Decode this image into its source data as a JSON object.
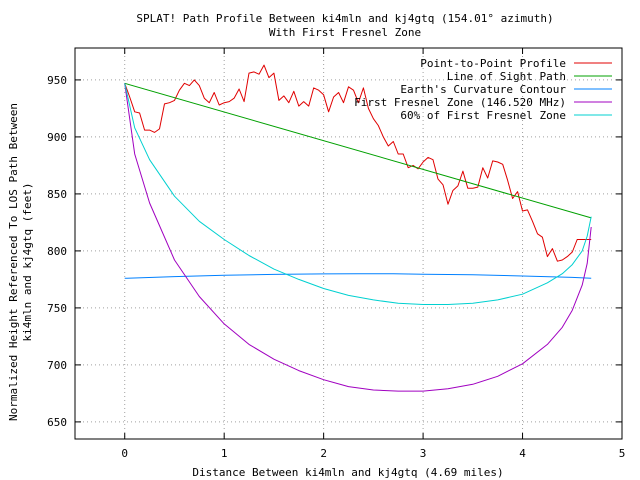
{
  "chart_data": {
    "type": "line",
    "title_line1": "SPLAT! Path Profile Between ki4mln and kj4gtq (154.01° azimuth)",
    "title_line2": "With First Fresnel Zone",
    "xlabel": "Distance Between ki4mln and kj4gtq (4.69 miles)",
    "ylabel_line1": "Normalized Height Referenced To LOS Path Between",
    "ylabel_line2": "ki4mln and kj4gtq (feet)",
    "xlim": [
      -0.5,
      5
    ],
    "ylim": [
      635,
      978
    ],
    "xticks": [
      0,
      1,
      2,
      3,
      4,
      5
    ],
    "yticks": [
      650,
      700,
      750,
      800,
      850,
      900,
      950
    ],
    "grid": true,
    "legend_position": "top-right",
    "series": [
      {
        "name": "Point-to-Point Profile",
        "color": "#e00000",
        "x": [
          0,
          0.05,
          0.1,
          0.15,
          0.2,
          0.25,
          0.3,
          0.35,
          0.4,
          0.45,
          0.5,
          0.55,
          0.6,
          0.65,
          0.7,
          0.75,
          0.8,
          0.85,
          0.9,
          0.95,
          1.0,
          1.05,
          1.1,
          1.15,
          1.2,
          1.25,
          1.3,
          1.35,
          1.4,
          1.45,
          1.5,
          1.55,
          1.6,
          1.65,
          1.7,
          1.75,
          1.8,
          1.85,
          1.9,
          1.95,
          2.0,
          2.05,
          2.1,
          2.15,
          2.2,
          2.25,
          2.3,
          2.35,
          2.4,
          2.45,
          2.5,
          2.55,
          2.6,
          2.65,
          2.7,
          2.75,
          2.8,
          2.85,
          2.9,
          2.95,
          3.0,
          3.05,
          3.1,
          3.15,
          3.2,
          3.25,
          3.3,
          3.35,
          3.4,
          3.45,
          3.5,
          3.55,
          3.6,
          3.65,
          3.7,
          3.75,
          3.8,
          3.85,
          3.9,
          3.95,
          4.0,
          4.05,
          4.1,
          4.15,
          4.2,
          4.25,
          4.3,
          4.35,
          4.4,
          4.45,
          4.5,
          4.55,
          4.6,
          4.65,
          4.69
        ],
        "y": [
          947,
          935,
          922,
          921,
          906,
          906,
          904,
          907,
          929,
          930,
          932,
          941,
          947,
          945,
          950,
          945,
          934,
          930,
          939,
          928,
          930,
          931,
          934,
          942,
          931,
          956,
          957,
          955,
          963,
          952,
          956,
          932,
          936,
          930,
          940,
          927,
          931,
          927,
          943,
          941,
          937,
          922,
          935,
          939,
          930,
          944,
          941,
          930,
          943,
          925,
          916,
          910,
          900,
          892,
          896,
          885,
          885,
          873,
          875,
          872,
          878,
          882,
          880,
          863,
          858,
          841,
          853,
          857,
          870,
          855,
          855,
          856,
          873,
          864,
          879,
          878,
          876,
          862,
          846,
          852,
          835,
          836,
          826,
          815,
          812,
          795,
          802,
          791,
          792,
          795,
          799,
          810,
          810,
          810,
          810
        ]
      },
      {
        "name": "Line of Sight Path",
        "color": "#00a000",
        "x": [
          0,
          4.69
        ],
        "y": [
          947,
          829
        ]
      },
      {
        "name": "Earth's Curvature Contour",
        "color": "#0080ff",
        "x": [
          0,
          0.5,
          1.0,
          1.5,
          2.0,
          2.345,
          2.7,
          3.0,
          3.5,
          4.0,
          4.5,
          4.69
        ],
        "y": [
          776,
          777.5,
          778.7,
          779.4,
          779.8,
          780,
          779.9,
          779.6,
          779,
          778,
          776.8,
          776
        ]
      },
      {
        "name": "First Fresnel Zone (146.520 MHz)",
        "color": "#a000c0",
        "x": [
          0,
          0.1,
          0.25,
          0.5,
          0.75,
          1.0,
          1.25,
          1.5,
          1.75,
          2.0,
          2.25,
          2.5,
          2.75,
          3.0,
          3.25,
          3.5,
          3.75,
          4.0,
          4.25,
          4.4,
          4.5,
          4.6,
          4.65,
          4.69
        ],
        "y": [
          947,
          885,
          842,
          792,
          760,
          736,
          718,
          705,
          695,
          687,
          681,
          678,
          677,
          677,
          679,
          683,
          690,
          701,
          718,
          733,
          748,
          770,
          789,
          821
        ]
      },
      {
        "name": "60% of First Fresnel Zone",
        "color": "#00d0d0",
        "x": [
          0,
          0.1,
          0.25,
          0.5,
          0.75,
          1.0,
          1.25,
          1.5,
          1.75,
          2.0,
          2.25,
          2.5,
          2.75,
          3.0,
          3.25,
          3.5,
          3.75,
          4.0,
          4.25,
          4.4,
          4.5,
          4.6,
          4.65,
          4.69
        ],
        "y": [
          947,
          908,
          880,
          848,
          826,
          810,
          796,
          784,
          775,
          767,
          761,
          757,
          754,
          753,
          753,
          754,
          757,
          762,
          772,
          780,
          788,
          800,
          813,
          830
        ]
      }
    ]
  }
}
